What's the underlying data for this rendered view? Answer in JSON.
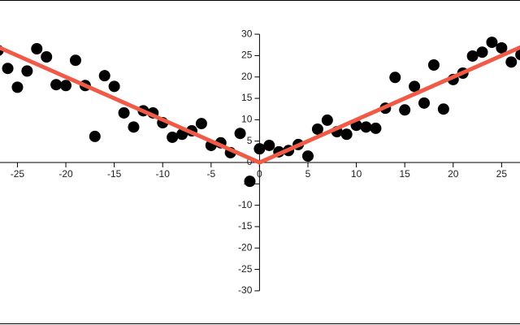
{
  "chart_data": {
    "type": "scatter",
    "x": [
      -27,
      -26,
      -25,
      -24,
      -23,
      -22,
      -21,
      -20,
      -19,
      -18,
      -17,
      -16,
      -15,
      -14,
      -13,
      -12,
      -11,
      -10,
      -9,
      -8,
      -7,
      -6,
      -5,
      -4,
      -3,
      -2,
      -1,
      0,
      1,
      2,
      3,
      4,
      5,
      6,
      7,
      8,
      9,
      10,
      11,
      12,
      13,
      14,
      15,
      16,
      17,
      18,
      19,
      20,
      21,
      22,
      23,
      24,
      25,
      26,
      27
    ],
    "values": [
      26.2,
      22.0,
      17.6,
      21.4,
      26.6,
      24.7,
      18.2,
      18.0,
      23.9,
      18.0,
      6.1,
      20.3,
      17.8,
      11.6,
      8.3,
      12.1,
      11.6,
      9.3,
      5.9,
      6.6,
      7.4,
      9.1,
      4.0,
      4.6,
      2.3,
      6.8,
      -4.4,
      3.2,
      4.0,
      2.5,
      2.8,
      4.2,
      1.5,
      7.8,
      9.9,
      7.2,
      6.6,
      8.7,
      8.3,
      8.0,
      12.7,
      19.9,
      12.3,
      17.8,
      13.9,
      22.8,
      12.5,
      19.4,
      20.9,
      24.9,
      25.8,
      28.1,
      26.8,
      23.5,
      25.2
    ],
    "color": "#000000",
    "line": {
      "x": [
        -27,
        0,
        27
      ],
      "values": [
        27,
        0,
        27
      ],
      "color": "#f05a46"
    },
    "xlim": [
      -26.8,
      26.9
    ],
    "ylim": [
      -38,
      38
    ],
    "xticks": [
      -25,
      -20,
      -15,
      -10,
      -5,
      0,
      5,
      10,
      15,
      20,
      25
    ],
    "yticks": [
      30,
      25,
      20,
      15,
      10,
      5,
      0,
      -5,
      -10,
      -15,
      -20,
      -25,
      -30
    ]
  }
}
